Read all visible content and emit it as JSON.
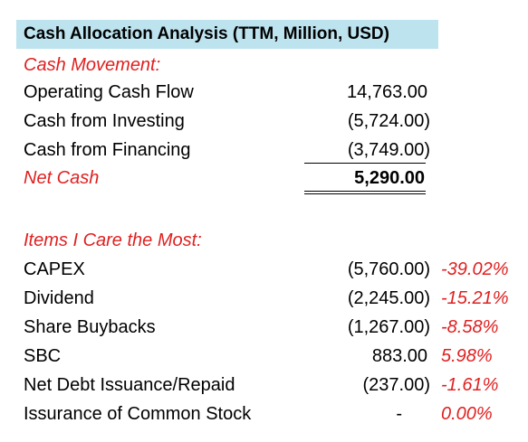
{
  "title": "Cash Allocation Analysis (TTM, Million, USD)",
  "cash_movement": {
    "header": "Cash Movement:",
    "rows": [
      {
        "label": "Operating Cash Flow",
        "value": "14,763.00"
      },
      {
        "label": "Cash from Investing",
        "value": "(5,724.00)"
      },
      {
        "label": "Cash from Financing",
        "value": "(3,749.00)"
      }
    ],
    "net": {
      "label": "Net Cash",
      "value": "5,290.00"
    }
  },
  "items": {
    "header": "Items I Care the Most:",
    "rows": [
      {
        "label": "CAPEX",
        "value": "(5,760.00)",
        "pct": "-39.02%"
      },
      {
        "label": "Dividend",
        "value": "(2,245.00)",
        "pct": "-15.21%"
      },
      {
        "label": "Share Buybacks",
        "value": "(1,267.00)",
        "pct": "-8.58%"
      },
      {
        "label": "SBC",
        "value": "883.00",
        "pct": "5.98%"
      },
      {
        "label": "Net Debt Issuance/Repaid",
        "value": "(237.00)",
        "pct": "-1.61%"
      },
      {
        "label": "Issurance of Common Stock",
        "value": "-",
        "pct": "0.00%"
      }
    ]
  },
  "colors": {
    "title_bg": "#bde3ef",
    "accent_red": "#e02020"
  }
}
